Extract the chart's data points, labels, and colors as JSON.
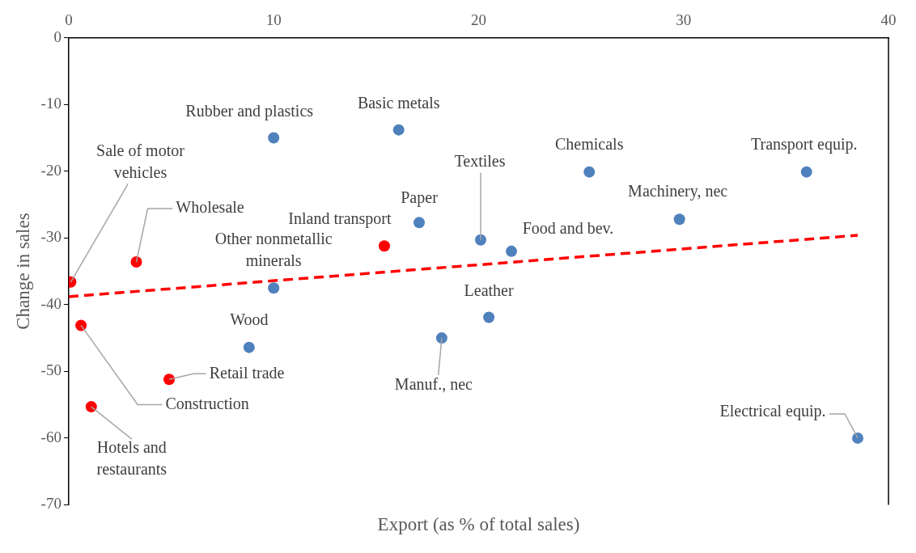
{
  "chart_data": {
    "type": "scatter",
    "xlabel": "Export (as % of total sales)",
    "ylabel": "Change in sales",
    "xlim": [
      0,
      40
    ],
    "xticks": [
      0,
      10,
      20,
      30,
      40
    ],
    "ylim": [
      -70,
      0
    ],
    "yticks": [
      -70,
      -60,
      -50,
      -40,
      -30,
      -20,
      -10,
      0
    ],
    "marker": "circle",
    "series": [
      {
        "color": "#4f81bd",
        "x": [
          10.0,
          16.1,
          17.1,
          20.1,
          21.6,
          25.4,
          29.8,
          36.0,
          10.0,
          8.8,
          20.5,
          18.2,
          38.5
        ],
        "values": [
          -15.0,
          -13.8,
          -27.7,
          -30.3,
          -32.0,
          -20.1,
          -27.2,
          -20.1,
          -37.5,
          -46.4,
          -41.9,
          -45.0,
          -60.0
        ]
      },
      {
        "color": "#ff0000",
        "x": [
          0.1,
          3.3,
          15.4,
          0.6,
          4.9,
          1.1
        ],
        "values": [
          -36.6,
          -33.6,
          -31.2,
          -43.1,
          -51.2,
          -55.3
        ]
      },
      {
        "type": "line",
        "color": "#ff0000",
        "line_style": "dashed",
        "marker": "none",
        "x": [
          0,
          38.5
        ],
        "values": [
          -38.8,
          -29.6
        ]
      }
    ],
    "annotations": [
      {
        "text": "Rubber and plastics",
        "x": 10.0,
        "y": -15.0
      },
      {
        "text": "Basic metals",
        "x": 16.1,
        "y": -13.8
      },
      {
        "text": "Paper",
        "x": 17.1,
        "y": -27.7
      },
      {
        "text": "Textiles",
        "x": 20.1,
        "y": -30.3
      },
      {
        "text": "Food and bev.",
        "x": 21.6,
        "y": -32.0
      },
      {
        "text": "Chemicals",
        "x": 25.4,
        "y": -20.1
      },
      {
        "text": "Machinery, nec",
        "x": 29.8,
        "y": -27.2
      },
      {
        "text": "Transport equip.",
        "x": 36.0,
        "y": -20.1
      },
      {
        "text": "Other nonmetallic minerals",
        "x": 10.0,
        "y": -37.5
      },
      {
        "text": "Wood",
        "x": 8.8,
        "y": -46.4
      },
      {
        "text": "Leather",
        "x": 20.5,
        "y": -41.9
      },
      {
        "text": "Manuf., nec",
        "x": 18.2,
        "y": -45.0
      },
      {
        "text": "Electrical equip.",
        "x": 38.5,
        "y": -60.0
      },
      {
        "text": "Sale of motor vehicles",
        "x": 0.1,
        "y": -36.6
      },
      {
        "text": "Wholesale",
        "x": 3.3,
        "y": -33.6
      },
      {
        "text": "Inland transport",
        "x": 15.4,
        "y": -31.2
      },
      {
        "text": "Construction",
        "x": 0.6,
        "y": -43.1
      },
      {
        "text": "Retail trade",
        "x": 4.9,
        "y": -51.2
      },
      {
        "text": "Hotels and restaurants",
        "x": 1.1,
        "y": -55.3
      }
    ]
  }
}
